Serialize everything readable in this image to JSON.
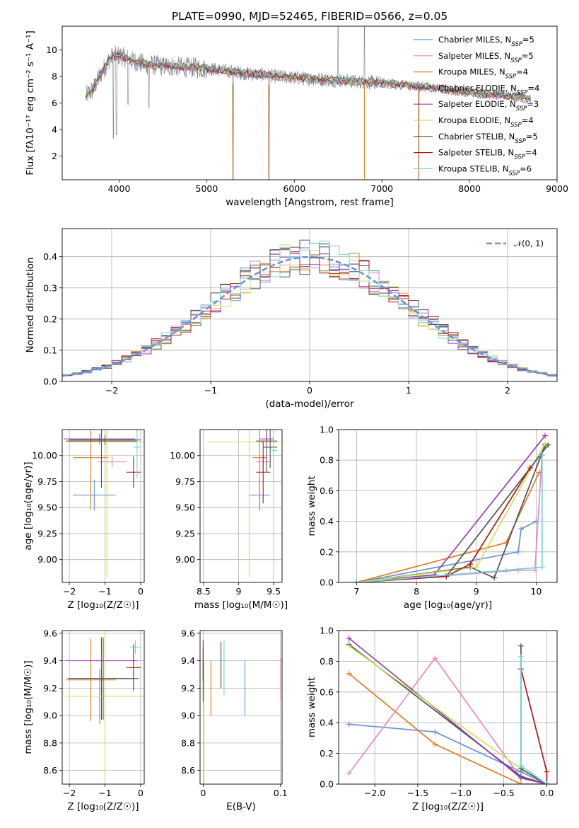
{
  "colors": {
    "Chabrier MILES": "#6a8fdc",
    "Salpeter MILES": "#e88ac3",
    "Kroupa MILES": "#e07b22",
    "Chabrier ELODIE": "#505050",
    "Salpeter ELODIE": "#9b3cb8",
    "Kroupa ELODIE": "#c8e45a",
    "Chabrier STELIB": "#505050",
    "Salpeter STELIB": "#b01818",
    "Kroupa STELIB": "#6fd6d6",
    "data_line": "#808080"
  },
  "chart_data": [
    {
      "id": "spectrum",
      "type": "line",
      "title": "PLATE=0990, MJD=52465, FIBERID=0566, z=0.05",
      "xlabel": "wavelength [Angstrom, rest frame]",
      "ylabel": "Flux [fλ10⁻¹⁷ erg cm⁻² s⁻¹ A⁻¹]",
      "xlim": [
        3350,
        9000
      ],
      "ylim": [
        0.2,
        11.8
      ],
      "xticks": [
        4000,
        5000,
        6000,
        7000,
        8000,
        9000
      ],
      "yticks": [
        2,
        4,
        6,
        8,
        10
      ],
      "grid": false,
      "legend_position": "top-right",
      "legend": [
        {
          "label": "Chabrier MILES, N",
          "sub": "SSP",
          "suffix": "=5",
          "color": "#6a8fdc"
        },
        {
          "label": "Salpeter MILES, N",
          "sub": "SSP",
          "suffix": "=5",
          "color": "#e88ac3"
        },
        {
          "label": "Kroupa MILES, N",
          "sub": "SSP",
          "suffix": "=4",
          "color": "#e07b22"
        },
        {
          "label": "Chabrier ELODIE, N",
          "sub": "SSP",
          "suffix": "=4",
          "color": "#505050"
        },
        {
          "label": "Salpeter ELODIE, N",
          "sub": "SSP",
          "suffix": "=3",
          "color": "#9b3cb8"
        },
        {
          "label": "Kroupa ELODIE, N",
          "sub": "SSP",
          "suffix": "=4",
          "color": "#c8e45a"
        },
        {
          "label": "Chabrier STELIB, N",
          "sub": "SSP",
          "suffix": "=5",
          "color": "#505050"
        },
        {
          "label": "Salpeter STELIB, N",
          "sub": "SSP",
          "suffix": "=4",
          "color": "#b01818"
        },
        {
          "label": "Kroupa STELIB, N",
          "sub": "SSP",
          "suffix": "=6",
          "color": "#6fd6d6"
        }
      ],
      "continuum_anchors": {
        "x": [
          3620,
          3700,
          3800,
          3900,
          4000,
          4100,
          4300,
          4500,
          5000,
          5500,
          6000,
          6500,
          7000,
          7500,
          8000,
          8500,
          8700
        ],
        "y": [
          6.5,
          7.0,
          8.3,
          9.4,
          9.6,
          9.3,
          8.9,
          8.8,
          8.6,
          8.2,
          7.9,
          7.7,
          7.5,
          7.2,
          6.8,
          6.5,
          6.3
        ]
      },
      "dips": [
        {
          "x": 3934,
          "y": 3.3
        },
        {
          "x": 3968,
          "y": 3.6
        },
        {
          "x": 4102,
          "y": 5.9
        },
        {
          "x": 4340,
          "y": 5.6
        },
        {
          "x": 5300,
          "y": 0.2
        },
        {
          "x": 5710,
          "y": 0.2
        },
        {
          "x": 6800,
          "y": 0.2
        },
        {
          "x": 7420,
          "y": 0.2
        }
      ],
      "spikes": [
        {
          "x": 6500,
          "y": 11.8
        },
        {
          "x": 6800,
          "y": 11.8
        }
      ]
    },
    {
      "id": "residuals",
      "type": "bar",
      "xlabel": "(data-model)/error",
      "ylabel": "Normed distribution",
      "xlim": [
        -2.5,
        2.5
      ],
      "ylim": [
        0,
        0.49
      ],
      "xticks": [
        -2,
        -1,
        0,
        1,
        2
      ],
      "yticks": [
        0.0,
        0.1,
        0.2,
        0.3,
        0.4
      ],
      "grid": true,
      "legend_position": "top-right",
      "legend": [
        {
          "label": "𝒩(0, 1)",
          "color": "#6a8fdc",
          "style": "dashed"
        }
      ],
      "bin_width": 0.1,
      "n_bins": 50,
      "gaussian": {
        "mean": 0,
        "sigma": 1
      }
    },
    {
      "id": "age-vs-Z",
      "type": "scatter",
      "xlabel": "Z [log₁₀(Z/Z☉)]",
      "ylabel": "age  [log₁₀(age/yr)]",
      "xlim": [
        -2.2,
        0.1
      ],
      "ylim": [
        8.78,
        10.25
      ],
      "xticks": [
        -2,
        -1,
        0
      ],
      "yticks": [
        9.0,
        9.25,
        9.5,
        9.75,
        10.0
      ],
      "ytick_labels": [
        "9.00",
        "9.25",
        "9.50",
        "9.75",
        "10.00"
      ],
      "grid": true,
      "points": [
        {
          "series": "Chabrier MILES",
          "x": -1.3,
          "xerr": 0.6,
          "y": 9.62,
          "yerr": 0.15
        },
        {
          "series": "Salpeter MILES",
          "x": -0.8,
          "xerr": 0.4,
          "y": 9.94,
          "yerr": 0.05
        },
        {
          "series": "Kroupa MILES",
          "x": -1.4,
          "xerr": 0.5,
          "y": 9.98,
          "yerr": 0.5
        },
        {
          "series": "Chabrier ELODIE",
          "x": -1.1,
          "xerr": 1.0,
          "y": 10.14,
          "yerr": 0.45
        },
        {
          "series": "Salpeter ELODIE",
          "x": -1.15,
          "xerr": 1.0,
          "y": 10.16,
          "yerr": 0.05
        },
        {
          "series": "Kroupa ELODIE",
          "x": -0.95,
          "xerr": 1.1,
          "y": 10.13,
          "yerr": 1.3
        },
        {
          "series": "Chabrier STELIB",
          "x": -1.0,
          "xerr": 1.0,
          "y": 10.15,
          "yerr": 0.05
        },
        {
          "series": "Salpeter STELIB",
          "x": -0.2,
          "xerr": 0.2,
          "y": 9.84,
          "yerr": 0.15
        },
        {
          "series": "Kroupa STELIB",
          "x": -0.1,
          "xerr": 0.1,
          "y": 10.08,
          "yerr": 0.3
        }
      ]
    },
    {
      "id": "age-vs-mass",
      "type": "scatter",
      "xlabel": "mass [log₁₀(M/M☉)]",
      "ylabel": "",
      "xlim": [
        8.45,
        9.62
      ],
      "ylim": [
        8.78,
        10.25
      ],
      "xticks": [
        8.5,
        9.0,
        9.5
      ],
      "yticks": [
        9.0,
        9.25,
        9.5,
        9.75,
        10.0
      ],
      "ytick_labels": [
        "9.00",
        "9.25",
        "9.50",
        "9.75",
        "10.00"
      ],
      "grid": true,
      "points": [
        {
          "series": "Chabrier MILES",
          "x": 9.3,
          "xerr": 0.15,
          "y": 9.62,
          "yerr": 0.15
        },
        {
          "series": "Salpeter MILES",
          "x": 9.35,
          "xerr": 0.1,
          "y": 9.94,
          "yerr": 0.08
        },
        {
          "series": "Kroupa MILES",
          "x": 9.3,
          "xerr": 0.1,
          "y": 9.98,
          "yerr": 0.5
        },
        {
          "series": "Chabrier ELODIE",
          "x": 9.4,
          "xerr": 0.15,
          "y": 10.14,
          "yerr": 0.3
        },
        {
          "series": "Salpeter ELODIE",
          "x": 9.4,
          "xerr": 0.1,
          "y": 10.16,
          "yerr": 0.05
        },
        {
          "series": "Kroupa ELODIE",
          "x": 9.15,
          "xerr": 0.6,
          "y": 10.13,
          "yerr": 1.3
        },
        {
          "series": "Chabrier STELIB",
          "x": 9.45,
          "xerr": 0.1,
          "y": 10.08,
          "yerr": 0.2
        },
        {
          "series": "Salpeter STELIB",
          "x": 9.35,
          "xerr": 0.1,
          "y": 9.84,
          "yerr": 0.3
        },
        {
          "series": "Kroupa STELIB",
          "x": 9.5,
          "xerr": 0.05,
          "y": 10.05,
          "yerr": 0.3
        }
      ]
    },
    {
      "id": "mass-weight-vs-age",
      "type": "line",
      "xlabel": "age  [log₁₀(age/yr)]",
      "ylabel": "mass weight",
      "xlim": [
        6.7,
        10.35
      ],
      "ylim": [
        0,
        1.0
      ],
      "xticks": [
        7,
        8,
        9,
        10
      ],
      "yticks": [
        0.0,
        0.2,
        0.4,
        0.6,
        0.8,
        1.0
      ],
      "grid": true,
      "series": [
        {
          "name": "Chabrier MILES",
          "x": [
            7.0,
            9.7,
            9.75,
            10.0
          ],
          "y": [
            0.0,
            0.2,
            0.35,
            0.4
          ]
        },
        {
          "name": "Salpeter MILES",
          "x": [
            7.0,
            9.7,
            9.98,
            10.1
          ],
          "y": [
            0.0,
            0.08,
            0.08,
            0.84
          ]
        },
        {
          "name": "Kroupa MILES",
          "x": [
            7.0,
            9.5,
            10.05
          ],
          "y": [
            0.0,
            0.26,
            0.72
          ]
        },
        {
          "name": "Chabrier ELODIE",
          "x": [
            7.0,
            8.9,
            9.3,
            10.15
          ],
          "y": [
            0.0,
            0.1,
            0.03,
            0.9
          ]
        },
        {
          "name": "Salpeter ELODIE",
          "x": [
            7.0,
            8.3,
            10.15
          ],
          "y": [
            0.0,
            0.05,
            0.96
          ]
        },
        {
          "name": "Kroupa ELODIE",
          "x": [
            7.0,
            9.0,
            10.15
          ],
          "y": [
            0.0,
            0.1,
            0.91
          ]
        },
        {
          "name": "Chabrier STELIB",
          "x": [
            7.0,
            8.5,
            10.2
          ],
          "y": [
            0.0,
            0.04,
            0.9
          ]
        },
        {
          "name": "Salpeter STELIB",
          "x": [
            7.0,
            8.5,
            8.9,
            9.9
          ],
          "y": [
            0.0,
            0.04,
            0.12,
            0.75
          ]
        },
        {
          "name": "Kroupa STELIB",
          "x": [
            7.0,
            9.5,
            10.1,
            10.1
          ],
          "y": [
            0.0,
            0.08,
            0.1,
            0.83
          ]
        }
      ]
    },
    {
      "id": "mass-vs-Z",
      "type": "scatter",
      "xlabel": "Z [log₁₀(Z/Z☉)]",
      "ylabel": "mass [log₁₀(M/M☉)]",
      "xlim": [
        -2.2,
        0.1
      ],
      "ylim": [
        8.5,
        9.62
      ],
      "xticks": [
        -2,
        -1,
        0
      ],
      "yticks": [
        8.6,
        8.8,
        9.0,
        9.2,
        9.4,
        9.6
      ],
      "ytick_labels": [
        "8.6",
        "8.8",
        "9.0",
        "9.2",
        "9.4",
        "9.6"
      ],
      "grid": true,
      "points": [
        {
          "series": "Chabrier MILES",
          "x": -1.15,
          "xerr": 0.8,
          "y": 9.14,
          "yerr": 0.2
        },
        {
          "series": "Salpeter MILES",
          "x": -1.1,
          "xerr": 0.7,
          "y": 9.27,
          "yerr": 0.1
        },
        {
          "series": "Kroupa MILES",
          "x": -1.4,
          "xerr": 0.7,
          "y": 9.26,
          "yerr": 0.3
        },
        {
          "series": "Chabrier ELODIE",
          "x": -1.1,
          "xerr": 0.9,
          "y": 9.27,
          "yerr": 0.3
        },
        {
          "series": "Salpeter ELODIE",
          "x": -1.1,
          "xerr": 1.0,
          "y": 9.4,
          "yerr": 0.05
        },
        {
          "series": "Kroupa ELODIE",
          "x": -1.0,
          "xerr": 1.1,
          "y": 9.14,
          "yerr": 0.6
        },
        {
          "series": "Chabrier STELIB",
          "x": -1.05,
          "xerr": 1.0,
          "y": 9.27,
          "yerr": 0.3
        },
        {
          "series": "Salpeter STELIB",
          "x": -0.2,
          "xerr": 0.2,
          "y": 9.35,
          "yerr": 0.17
        },
        {
          "series": "Kroupa STELIB",
          "x": -0.15,
          "xerr": 0.15,
          "y": 9.5,
          "yerr": 0.05
        }
      ]
    },
    {
      "id": "mass-vs-EBV",
      "type": "scatter",
      "xlabel": "E(B-V)",
      "ylabel": "",
      "xlim": [
        -0.004,
        0.102
      ],
      "ylim": [
        8.5,
        9.62
      ],
      "xticks": [
        0.0,
        0.1
      ],
      "yticks": [
        8.6,
        8.8,
        9.0,
        9.2,
        9.4,
        9.6
      ],
      "ytick_labels": [
        "8.6",
        "8.8",
        "9.0",
        "9.2",
        "9.4",
        "9.6"
      ],
      "grid": true,
      "points": [
        {
          "series": "Chabrier MILES",
          "x": 0.054,
          "y": 9.2,
          "yerr": 0.2
        },
        {
          "series": "Salpeter MILES",
          "x": 0.1,
          "y": 9.27,
          "yerr": 0.15
        },
        {
          "series": "Kroupa MILES",
          "x": 0.01,
          "y": 9.2,
          "yerr": 0.2
        },
        {
          "series": "Chabrier ELODIE",
          "x": 0.023,
          "y": 9.37,
          "yerr": 0.17
        },
        {
          "series": "Salpeter ELODIE",
          "x": 0.0,
          "y": 9.35,
          "yerr": 0.1
        },
        {
          "series": "Kroupa ELODIE",
          "x": 0.001,
          "y": 8.95,
          "yerr": 0.45
        },
        {
          "series": "Chabrier STELIB",
          "x": 0.0,
          "y": 9.3,
          "yerr": 0.2
        },
        {
          "series": "Salpeter STELIB",
          "x": 0.0,
          "y": 9.4,
          "yerr": 0.15
        },
        {
          "series": "Kroupa STELIB",
          "x": 0.027,
          "y": 9.35,
          "yerr": 0.2
        }
      ]
    },
    {
      "id": "mass-weight-vs-Z",
      "type": "line",
      "xlabel": "Z [log₁₀(Z/Z☉)]",
      "ylabel": "mass weight",
      "xlim": [
        -2.42,
        0.12
      ],
      "ylim": [
        0,
        1.0
      ],
      "xticks": [
        -2.0,
        -1.5,
        -1.0,
        -0.5,
        0.0
      ],
      "xtick_labels": [
        "−2.0",
        "−1.5",
        "−1.0",
        "−0.5",
        "0.0"
      ],
      "yticks": [
        0.0,
        0.2,
        0.4,
        0.6,
        0.8,
        1.0
      ],
      "grid": true,
      "series": [
        {
          "name": "Chabrier MILES",
          "x": [
            -2.3,
            -1.3,
            -0.3,
            0.0
          ],
          "y": [
            0.39,
            0.34,
            0.08,
            0.0
          ]
        },
        {
          "name": "Salpeter MILES",
          "x": [
            -2.3,
            -1.3,
            -0.3,
            0.0
          ],
          "y": [
            0.07,
            0.82,
            0.04,
            0.0
          ]
        },
        {
          "name": "Kroupa MILES",
          "x": [
            -2.3,
            -1.3,
            -0.3,
            0.0
          ],
          "y": [
            0.72,
            0.26,
            0.0,
            0.0
          ]
        },
        {
          "name": "Chabrier ELODIE",
          "x": [
            -2.3,
            -0.3,
            0.0
          ],
          "y": [
            0.91,
            0.05,
            0.0
          ]
        },
        {
          "name": "Salpeter ELODIE",
          "x": [
            -2.3,
            -0.3,
            0.0
          ],
          "y": [
            0.95,
            0.04,
            0.0
          ]
        },
        {
          "name": "Kroupa ELODIE",
          "x": [
            -2.3,
            -0.3,
            0.0
          ],
          "y": [
            0.9,
            0.1,
            0.0
          ]
        },
        {
          "name": "Chabrier STELIB",
          "x": [
            -0.3,
            -0.3,
            0.0
          ],
          "y": [
            0.9,
            0.1,
            0.0
          ]
        },
        {
          "name": "Salpeter STELIB",
          "x": [
            -0.3,
            0.0,
            0.0
          ],
          "y": [
            0.75,
            0.08,
            0.0
          ]
        },
        {
          "name": "Kroupa STELIB",
          "x": [
            -0.3,
            -0.3,
            0.0
          ],
          "y": [
            0.83,
            0.12,
            0.0
          ]
        }
      ]
    }
  ]
}
